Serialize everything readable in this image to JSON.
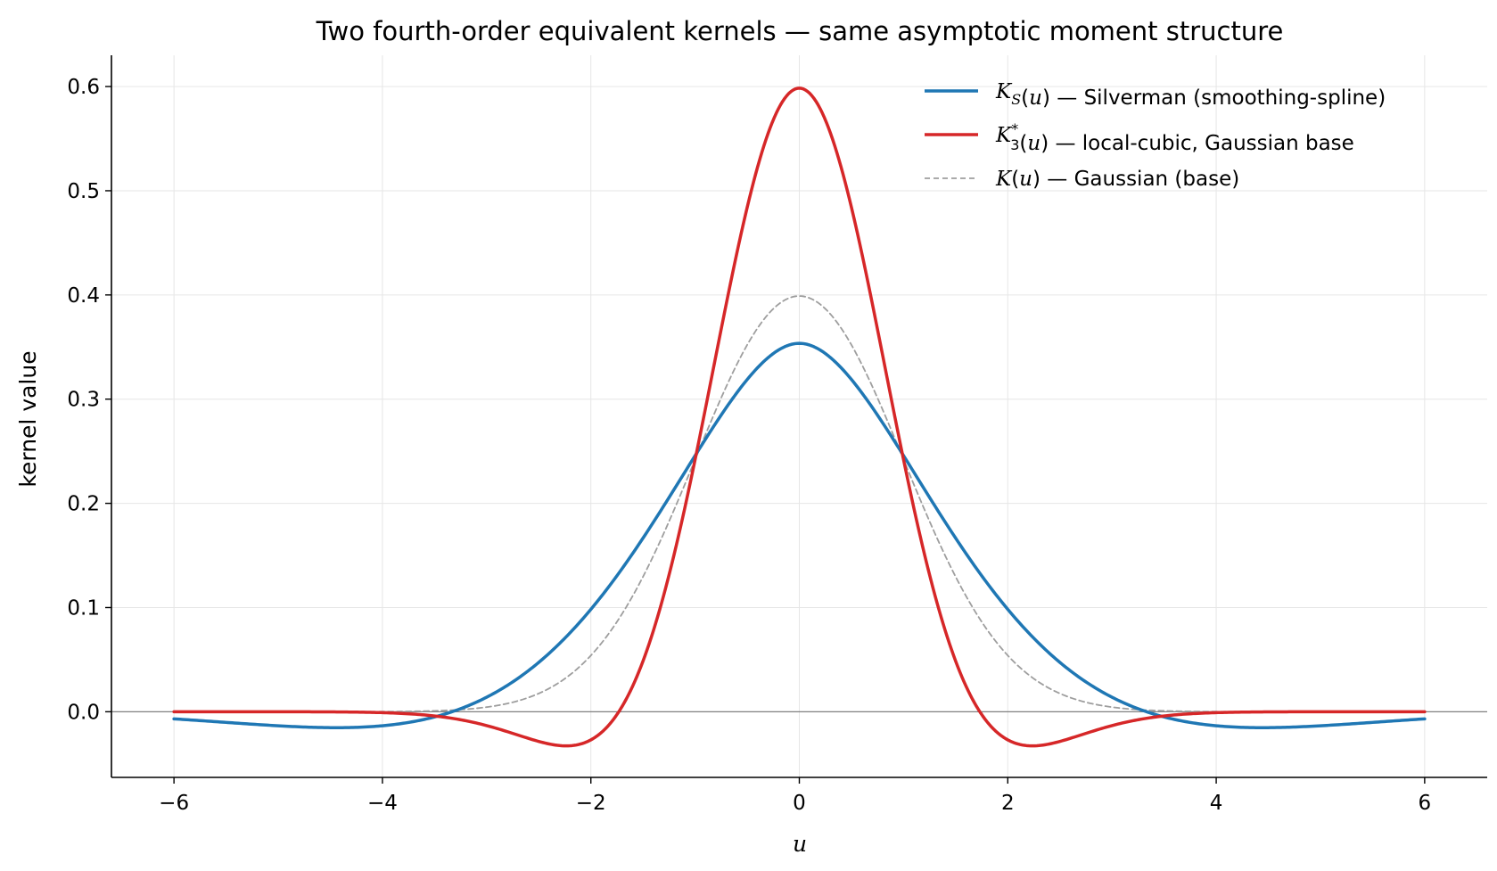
{
  "chart_data": {
    "type": "line",
    "title": "Two fourth-order equivalent kernels — same asymptotic moment structure",
    "xlabel": "u",
    "ylabel": "kernel value",
    "xlim": [
      -6.6,
      6.6
    ],
    "ylim": [
      -0.063,
      0.63
    ],
    "xticks": [
      -6,
      -4,
      -2,
      0,
      2,
      4,
      6
    ],
    "xtick_labels": [
      "−6",
      "−4",
      "−2",
      "0",
      "2",
      "4",
      "6"
    ],
    "yticks": [
      0.0,
      0.1,
      0.2,
      0.3,
      0.4,
      0.5,
      0.6
    ],
    "ytick_labels": [
      "0.0",
      "0.1",
      "0.2",
      "0.3",
      "0.4",
      "0.5",
      "0.6"
    ],
    "grid": true,
    "legend_position": "top-right",
    "x_range": [
      -6,
      6
    ],
    "series": [
      {
        "name": "K_S(u) — Silverman (smoothing-spline)",
        "legend": {
          "sym": "K",
          "sub": "S",
          "sup": "",
          "rest": "(u) — Silverman (smoothing-spline)"
        },
        "color": "#1f77b4",
        "style": "solid",
        "formula": "silverman",
        "x_sample": [
          -6,
          -4.44,
          -3.4,
          -2,
          -1,
          0,
          1,
          2,
          3.4,
          4.44,
          6
        ],
        "y_sample": [
          -0.006,
          -0.014,
          0.0,
          0.098,
          0.249,
          0.354,
          0.249,
          0.098,
          0.0,
          -0.014,
          -0.006
        ]
      },
      {
        "name": "K*_3(u) — local-cubic, Gaussian base",
        "legend": {
          "sym": "K",
          "sub": "3",
          "sup": "*",
          "rest": "(u) — local-cubic, Gaussian base"
        },
        "color": "#d62728",
        "style": "solid",
        "formula": "local_cubic_gaussian",
        "x_sample": [
          -6,
          -3,
          -2.24,
          -1.73,
          -1,
          0,
          1,
          1.73,
          2.24,
          3,
          6
        ],
        "y_sample": [
          0.0,
          -0.011,
          -0.031,
          0.0,
          0.242,
          0.598,
          0.242,
          0.0,
          -0.031,
          -0.011,
          0.0
        ]
      },
      {
        "name": "K(u) — Gaussian (base)",
        "legend": {
          "sym": "K",
          "sub": "",
          "sup": "",
          "rest": "(u) — Gaussian (base)"
        },
        "color": "#9e9e9e",
        "style": "dashed",
        "formula": "gaussian",
        "x_sample": [
          -6,
          -3,
          -2,
          -1,
          0,
          1,
          2,
          3,
          6
        ],
        "y_sample": [
          0.0,
          0.004,
          0.054,
          0.242,
          0.399,
          0.242,
          0.054,
          0.004,
          0.0
        ]
      }
    ]
  }
}
